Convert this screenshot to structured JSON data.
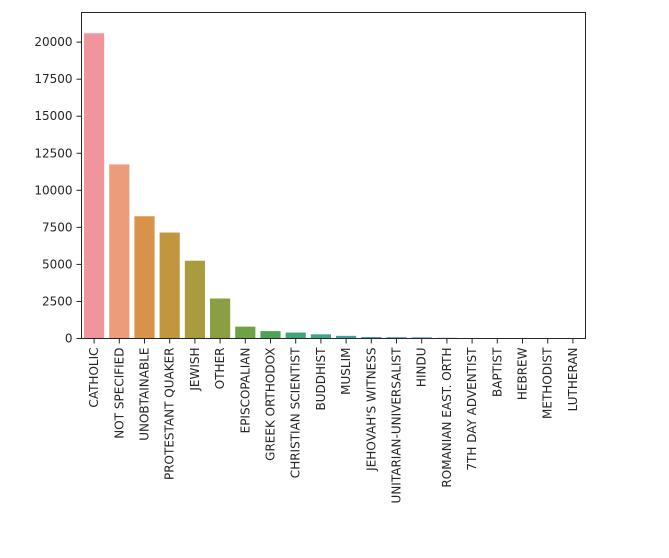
{
  "chart_data": {
    "type": "bar",
    "title": "",
    "xlabel": "",
    "ylabel": "",
    "ylim": [
      0,
      22000
    ],
    "yticks": [
      0,
      2500,
      5000,
      7500,
      10000,
      12500,
      15000,
      17500,
      20000
    ],
    "grid": false,
    "categories": [
      "CATHOLIC",
      "NOT SPECIFIED",
      "UNOBTAINABLE",
      "PROTESTANT QUAKER",
      "JEWISH",
      "OTHER",
      "EPISCOPALIAN",
      "GREEK ORTHODOX",
      "CHRISTIAN SCIENTIST",
      "BUDDHIST",
      "MUSLIM",
      "JEHOVAH'S WITNESS",
      "UNITARIAN-UNIVERSALIST",
      "HINDU",
      "ROMANIAN EAST. ORTH",
      "7TH DAY ADVENTIST",
      "BAPTIST",
      "HEBREW",
      "METHODIST",
      "LUTHERAN"
    ],
    "values": [
      20600,
      11750,
      8250,
      7150,
      5250,
      2700,
      800,
      500,
      400,
      280,
      180,
      100,
      90,
      80,
      50,
      30,
      10,
      5,
      3,
      1
    ],
    "colors": [
      "#f0959b",
      "#ec9c7a",
      "#d9924a",
      "#c1963f",
      "#a89c3e",
      "#8b9e42",
      "#6da346",
      "#4ea357",
      "#41a47b",
      "#42a28d",
      "#44a09a",
      "#46a0a9",
      "#4aa0bb",
      "#5a9ed2",
      "#7c9be5",
      "#9c93ea",
      "#bb89e6",
      "#d67fd8",
      "#e67ac4",
      "#ee85ae"
    ]
  }
}
